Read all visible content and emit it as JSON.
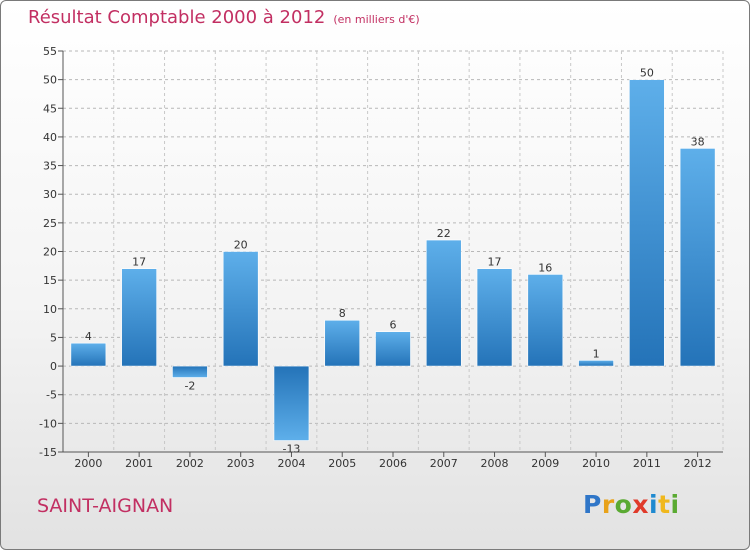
{
  "chart_data": {
    "type": "bar",
    "title": "Résultat Comptable 2000 à 2012",
    "subtitle": "(en milliers d'€)",
    "categories": [
      "2000",
      "2001",
      "2002",
      "2003",
      "2004",
      "2005",
      "2006",
      "2007",
      "2008",
      "2009",
      "2010",
      "2011",
      "2012"
    ],
    "values": [
      4,
      17,
      -2,
      20,
      -13,
      8,
      6,
      22,
      17,
      16,
      1,
      50,
      38
    ],
    "data_labels": [
      "4",
      "17",
      "-2",
      "20",
      "-13",
      "8",
      "6",
      "22",
      "17",
      "16",
      "1",
      "50",
      "38"
    ],
    "ylim": [
      -15,
      55
    ],
    "yticks": [
      "-15",
      "-10",
      "-5",
      "0",
      "5",
      "10",
      "15",
      "20",
      "25",
      "30",
      "35",
      "40",
      "45",
      "50",
      "55"
    ],
    "xlabel": "",
    "ylabel": "",
    "grid": "horizontal dashed",
    "bar_color": "#3d8fd4"
  },
  "footer": {
    "town": "SAINT-AIGNAN",
    "logo_text": "Proxiti",
    "logo_letters": [
      {
        "ch": "P",
        "color": "#2f76c8"
      },
      {
        "ch": "r",
        "color": "#e8a21a"
      },
      {
        "ch": "o",
        "color": "#5aaa32"
      },
      {
        "ch": "x",
        "color": "#e03a2a"
      },
      {
        "ch": "i",
        "color": "#1f8ad0"
      },
      {
        "ch": "t",
        "color": "#f0b81d"
      },
      {
        "ch": "i",
        "color": "#5aaa32"
      }
    ]
  }
}
